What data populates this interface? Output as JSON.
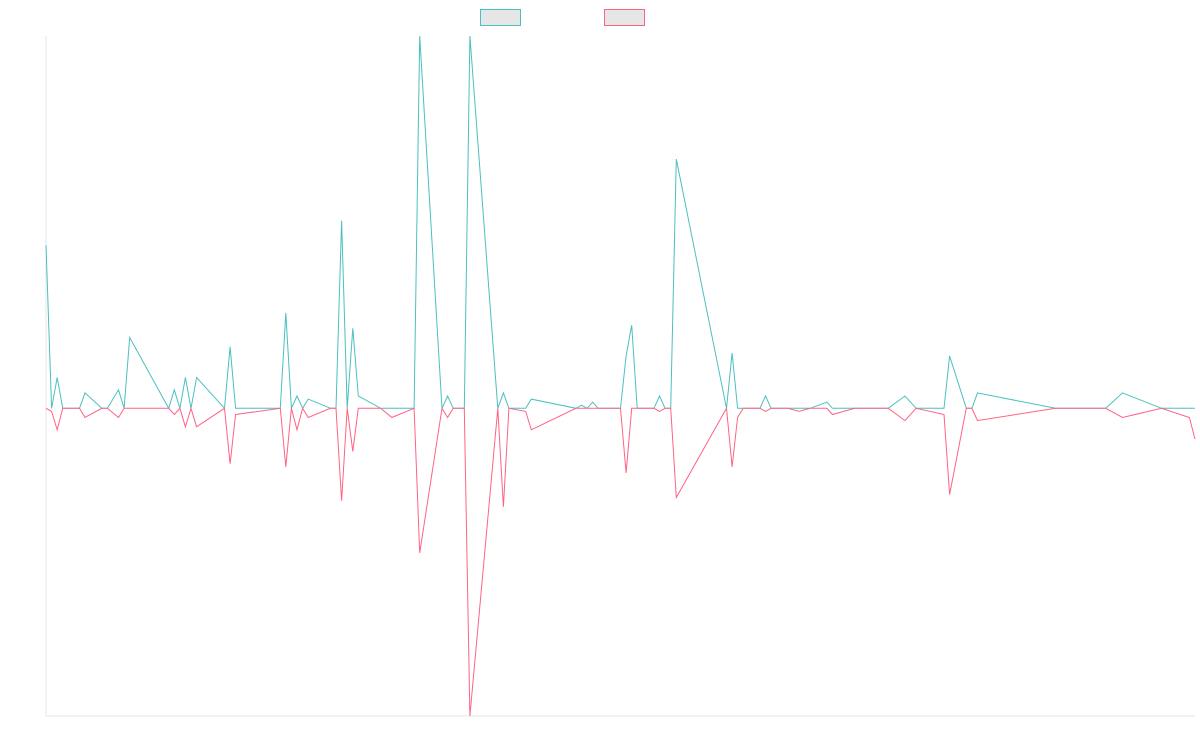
{
  "chart_data": {
    "type": "line",
    "title": "",
    "xlabel": "",
    "ylabel": "",
    "grid": false,
    "legend_position": "top-center",
    "ylim": [
      -100,
      121
    ],
    "series": [
      {
        "name": "",
        "color": "#4bc0c0",
        "fill": "#e6e6e6",
        "x": [
          0,
          1,
          2,
          3,
          6,
          7,
          10,
          11,
          13,
          14,
          15,
          22,
          23,
          24,
          25,
          26,
          27,
          32,
          33,
          34,
          42,
          43,
          44,
          45,
          46,
          47,
          51,
          52,
          53,
          54,
          55,
          56,
          60,
          62,
          66,
          67,
          71,
          72,
          73,
          74,
          75,
          76,
          81,
          82,
          83,
          86,
          87,
          95,
          96,
          97,
          98,
          99,
          103,
          104,
          105,
          106,
          109,
          110,
          111,
          112,
          113,
          122,
          123,
          124,
          125,
          128,
          129,
          130,
          133,
          135,
          137,
          140,
          141,
          145,
          147,
          151,
          154,
          156,
          161,
          162,
          165,
          166,
          167,
          181,
          184,
          190,
          193,
          200,
          205,
          206
        ],
        "y": [
          53,
          0,
          10,
          0,
          0,
          5,
          0,
          0,
          6,
          0,
          23,
          0,
          6,
          0,
          10,
          0,
          10,
          0,
          20,
          0,
          0,
          31,
          0,
          4,
          0,
          3,
          0,
          0,
          61,
          0,
          26,
          4,
          0,
          0,
          0,
          121,
          0,
          4,
          0,
          0,
          0,
          121,
          0,
          5,
          0,
          0,
          3,
          0,
          1,
          0,
          2,
          0,
          0,
          17,
          27,
          0,
          0,
          4,
          0,
          0,
          81,
          0,
          18,
          0,
          0,
          0,
          4,
          0,
          0,
          0,
          0,
          2,
          0,
          0,
          0,
          0,
          4,
          0,
          0,
          17,
          0,
          0,
          5,
          0,
          0,
          0,
          5,
          0,
          0,
          0
        ]
      },
      {
        "name": "",
        "color": "#ff6384",
        "fill": "#e6e6e6",
        "x": [
          0,
          1,
          2,
          3,
          6,
          7,
          10,
          11,
          13,
          14,
          15,
          22,
          23,
          24,
          25,
          26,
          27,
          32,
          33,
          34,
          42,
          43,
          44,
          45,
          46,
          47,
          51,
          52,
          53,
          54,
          55,
          56,
          60,
          62,
          66,
          67,
          71,
          72,
          73,
          74,
          75,
          76,
          81,
          82,
          83,
          86,
          87,
          95,
          96,
          97,
          98,
          99,
          103,
          104,
          105,
          106,
          109,
          110,
          111,
          112,
          113,
          122,
          123,
          124,
          125,
          128,
          129,
          130,
          133,
          135,
          137,
          140,
          141,
          145,
          147,
          151,
          154,
          156,
          161,
          162,
          165,
          166,
          167,
          181,
          184,
          190,
          193,
          200,
          205,
          206
        ],
        "y": [
          0,
          -1,
          -7,
          0,
          0,
          -3,
          0,
          0,
          -3,
          0,
          0,
          0,
          -2,
          0,
          -6,
          0,
          -6,
          0,
          -18,
          -2,
          0,
          -19,
          0,
          -7,
          0,
          -3,
          0,
          0,
          -30,
          0,
          -14,
          0,
          0,
          -3,
          0,
          -47,
          0,
          -3,
          0,
          0,
          0,
          -100,
          0,
          -32,
          0,
          -1,
          -7,
          0,
          0,
          0,
          0,
          0,
          0,
          -21,
          0,
          0,
          0,
          -1,
          0,
          0,
          -29,
          0,
          -19,
          -3,
          0,
          0,
          -1,
          0,
          0,
          -1,
          0,
          0,
          -2,
          0,
          0,
          0,
          -4,
          0,
          -2,
          -28,
          0,
          0,
          -4,
          0,
          0,
          0,
          -3,
          0,
          -3,
          -10
        ]
      }
    ]
  }
}
